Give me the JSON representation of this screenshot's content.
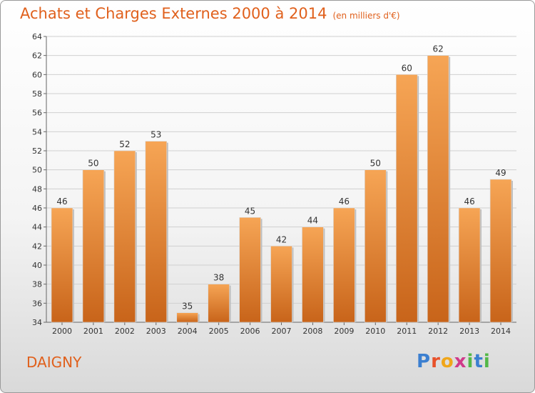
{
  "chart_data": {
    "type": "bar",
    "title": "Achats et Charges Externes 2000 à 2014",
    "subtitle": "(en milliers d'€)",
    "categories": [
      "2000",
      "2001",
      "2002",
      "2003",
      "2004",
      "2005",
      "2006",
      "2007",
      "2008",
      "2009",
      "2010",
      "2011",
      "2012",
      "2013",
      "2014"
    ],
    "values": [
      46,
      50,
      52,
      53,
      35,
      38,
      45,
      42,
      44,
      46,
      50,
      60,
      62,
      46,
      49
    ],
    "ylim": [
      34,
      64
    ],
    "yticks": [
      34,
      36,
      38,
      40,
      42,
      44,
      46,
      48,
      50,
      52,
      54,
      56,
      58,
      60,
      62,
      64
    ],
    "grid": true,
    "bar_color_top": "#f6a555",
    "bar_color_bottom": "#c8641a"
  },
  "commune": "DAIGNY",
  "logo": {
    "letters": [
      {
        "ch": "P",
        "color": "#3b7fd0"
      },
      {
        "ch": "r",
        "color": "#e8512a"
      },
      {
        "ch": "o",
        "color": "#f0a61a"
      },
      {
        "ch": "x",
        "color": "#d03a8a"
      },
      {
        "ch": "i",
        "color": "#54b848"
      },
      {
        "ch": "t",
        "color": "#3b7fd0"
      },
      {
        "ch": "i",
        "color": "#54b848"
      }
    ]
  }
}
